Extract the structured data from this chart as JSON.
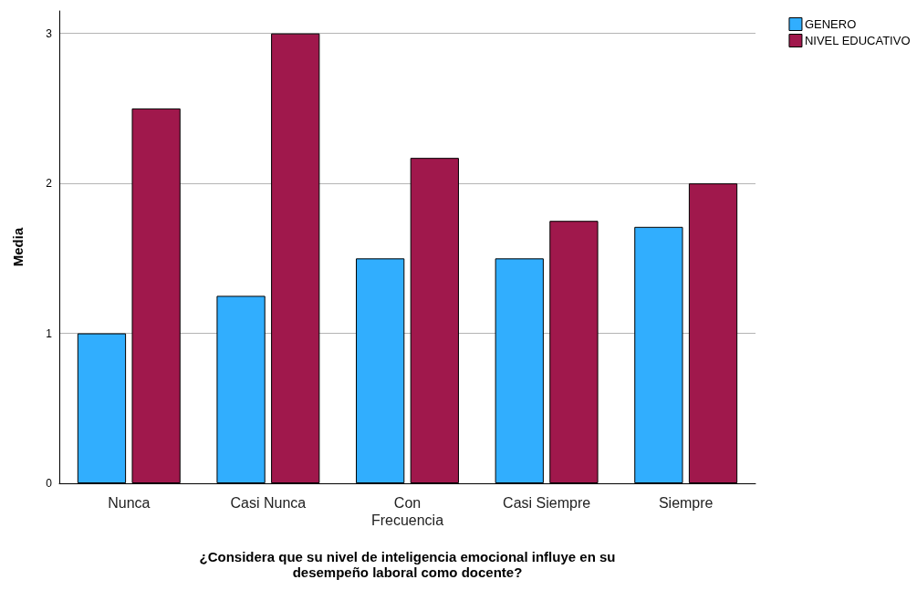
{
  "chart_data": {
    "type": "bar",
    "xlabel": "¿Considera que su nivel de inteligencia emocional influye en su\ndesempeño laboral como docente?",
    "ylabel": "Media",
    "categories": [
      "Nunca",
      "Casi Nunca",
      "Con\nFrecuencia",
      "Casi Siempre",
      "Siempre"
    ],
    "series": [
      {
        "name": "GENERO",
        "color": "#31aefe",
        "values": [
          1.0,
          1.25,
          1.5,
          1.5,
          1.71
        ]
      },
      {
        "name": "NIVEL EDUCATIVO",
        "color": "#a0184c",
        "values": [
          2.5,
          3.0,
          2.17,
          1.75,
          2.0
        ]
      }
    ],
    "ylim": [
      0,
      3.15
    ],
    "yticks": [
      0,
      1,
      2,
      3
    ],
    "grid": "y",
    "legend": "top right"
  }
}
